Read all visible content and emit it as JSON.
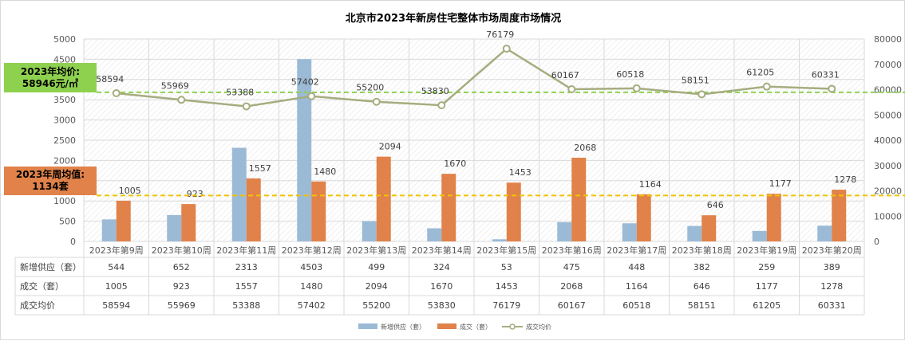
{
  "title": "北京市2023年新房住宅整体市场周度市场情况",
  "annotations": {
    "avg_price_line1": "2023年均价:",
    "avg_price_line2": "58946元/㎡",
    "avg_volume_line1": "2023年周均值:",
    "avg_volume_line2": "1134套"
  },
  "colors": {
    "supply": "#9bbad6",
    "deals": "#e0824a",
    "price_line": "#a5ad7f",
    "avg_price_ref": "#8ed14f",
    "avg_volume_ref": "#f2c200"
  },
  "chart_data": {
    "type": "bar",
    "categories": [
      "2023年第9周",
      "2023年第10周",
      "2023年第11周",
      "2023年第12周",
      "2023年第13周",
      "2023年第14周",
      "2023年第15周",
      "2023年第16周",
      "2023年第17周",
      "2023年第18周",
      "2023年第19周",
      "2023年第20周"
    ],
    "series": [
      {
        "name": "新增供应（套）",
        "type": "bar",
        "axis": "left",
        "values": [
          544,
          652,
          2313,
          4503,
          499,
          324,
          53,
          475,
          448,
          382,
          259,
          389
        ]
      },
      {
        "name": "成交（套）",
        "type": "bar",
        "axis": "left",
        "values": [
          1005,
          923,
          1557,
          1480,
          2094,
          1670,
          1453,
          2068,
          1164,
          646,
          1177,
          1278
        ]
      },
      {
        "name": "成交均价",
        "type": "line",
        "axis": "right",
        "values": [
          58594,
          55969,
          53388,
          57402,
          55200,
          53830,
          76179,
          60167,
          60518,
          58151,
          61205,
          60331
        ]
      }
    ],
    "table_rows": [
      {
        "label": "新增供应（套）",
        "values": [
          "544",
          "652",
          "2313",
          "4503",
          "499",
          "324",
          "53",
          "475",
          "448",
          "382",
          "259",
          "389"
        ]
      },
      {
        "label": "成交（套）",
        "values": [
          "1005",
          "923",
          "1557",
          "1480",
          "2094",
          "1670",
          "1453",
          "2068",
          "1164",
          "646",
          "1177",
          "1278"
        ]
      },
      {
        "label": "成交均价",
        "values": [
          "58594",
          "55969",
          "53388",
          "57402",
          "55200",
          "53830",
          "76179",
          "60167",
          "60518",
          "58151",
          "61205",
          "60331"
        ]
      }
    ],
    "reference_lines": [
      {
        "axis": "right",
        "value": 58946
      },
      {
        "axis": "left",
        "value": 1134
      }
    ],
    "ylim_left": [
      0,
      5000
    ],
    "yticks_left": [
      0,
      500,
      1000,
      1500,
      2000,
      2500,
      3000,
      3500,
      4000,
      4500,
      5000
    ],
    "ylim_right": [
      0,
      80000
    ],
    "yticks_right": [
      0,
      10000,
      20000,
      30000,
      40000,
      50000,
      60000,
      70000,
      80000
    ],
    "legend_position": "bottom",
    "grid": true
  }
}
